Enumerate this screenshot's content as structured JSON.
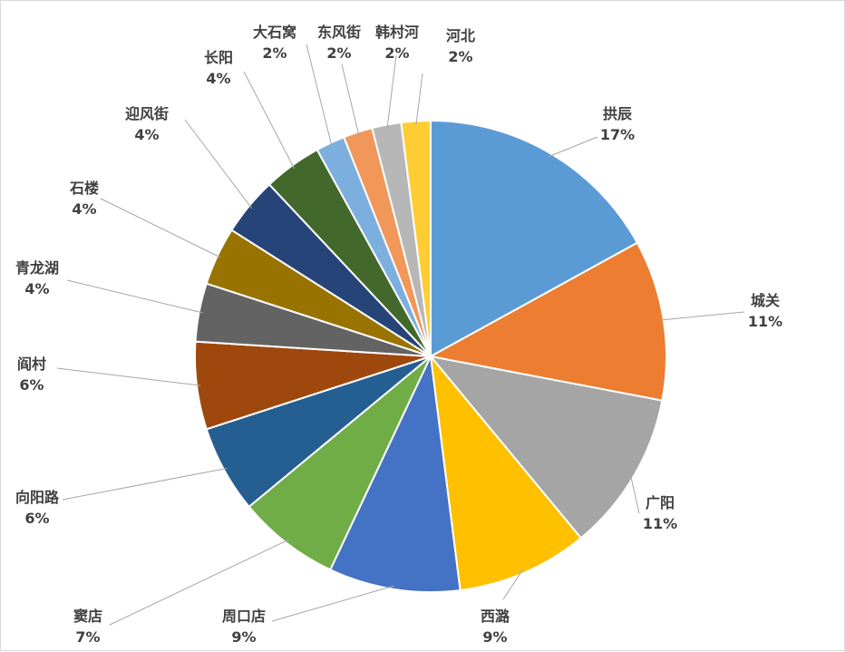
{
  "chart_data": {
    "type": "pie",
    "title": "",
    "legend": "none",
    "slices": [
      {
        "name": "拱辰",
        "value": 17,
        "label": "17%",
        "color": "#5B9BD5"
      },
      {
        "name": "城关",
        "value": 11,
        "label": "11%",
        "color": "#ED7D31"
      },
      {
        "name": "广阳",
        "value": 11,
        "label": "11%",
        "color": "#A5A5A5"
      },
      {
        "name": "西潞",
        "value": 9,
        "label": "9%",
        "color": "#FFC000"
      },
      {
        "name": "周口店",
        "value": 9,
        "label": "9%",
        "color": "#4472C4"
      },
      {
        "name": "窦店",
        "value": 7,
        "label": "7%",
        "color": "#70AD47"
      },
      {
        "name": "向阳路",
        "value": 6,
        "label": "6%",
        "color": "#255E91"
      },
      {
        "name": "阎村",
        "value": 6,
        "label": "6%",
        "color": "#9E480E"
      },
      {
        "name": "青龙湖",
        "value": 4,
        "label": "4%",
        "color": "#636363"
      },
      {
        "name": "石楼",
        "value": 4,
        "label": "4%",
        "color": "#997300"
      },
      {
        "name": "迎风街",
        "value": 4,
        "label": "4%",
        "color": "#264478"
      },
      {
        "name": "长阳",
        "value": 4,
        "label": "4%",
        "color": "#43682B"
      },
      {
        "name": "大石窝",
        "value": 2,
        "label": "2%",
        "color": "#7CAFDD"
      },
      {
        "name": "东风街",
        "value": 2,
        "label": "2%",
        "color": "#F1975A"
      },
      {
        "name": "韩村河",
        "value": 2,
        "label": "2%",
        "color": "#B7B7B7"
      },
      {
        "name": "河北",
        "value": 2,
        "label": "2%",
        "color": "#FFCD33"
      }
    ]
  }
}
